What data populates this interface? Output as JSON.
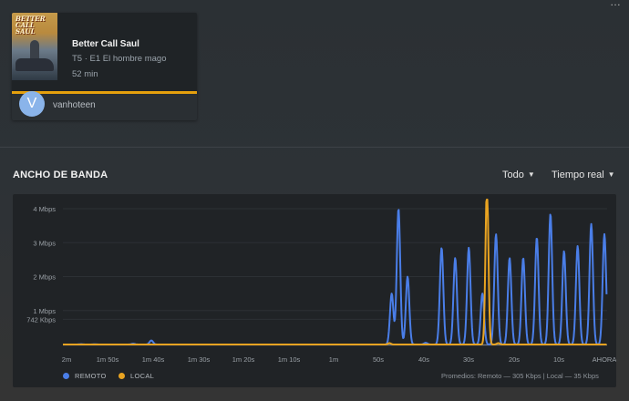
{
  "session": {
    "show_title": "Better Call Saul",
    "episode": "T5 · E1 El hombre mago",
    "duration": "52 min",
    "poster_text": "BETTER CALL SAUL",
    "progress": 1.0,
    "user": {
      "avatar_letter": "V",
      "name": "vanhoteen"
    }
  },
  "bandwidth": {
    "title": "ANCHO DE BANDA",
    "filter_label": "Todo",
    "range_label": "Tiempo real",
    "legend": {
      "remote": "REMOTO",
      "local": "LOCAL"
    },
    "averages": "Promedios: Remoto — 305 Kbps | Local — 35 Kbps"
  },
  "colors": {
    "remote": "#4a7ee8",
    "local": "#e8a321",
    "accent": "#e5a00d",
    "avatar": "#8ab4ea"
  },
  "chart_data": {
    "type": "line",
    "title": "ANCHO DE BANDA",
    "y_unit": "Kbps",
    "y_ticks": [
      {
        "label": "742 Kbps",
        "value": 742
      },
      {
        "label": "1 Mbps",
        "value": 1000
      },
      {
        "label": "2 Mbps",
        "value": 2000
      },
      {
        "label": "3 Mbps",
        "value": 3000
      },
      {
        "label": "4 Mbps",
        "value": 4000
      }
    ],
    "ylim": [
      0,
      4000
    ],
    "x_ticks": [
      "2m",
      "1m 50s",
      "1m 40s",
      "1m 30s",
      "1m 20s",
      "1m 10s",
      "1m",
      "50s",
      "40s",
      "30s",
      "20s",
      "10s",
      "AHORA"
    ],
    "x_unit": "seconds ago",
    "xlim": [
      120,
      0
    ],
    "series": [
      {
        "name": "REMOTO",
        "color": "#4a7ee8",
        "peaks": [
          {
            "x": 116,
            "y": 10
          },
          {
            "x": 113,
            "y": 8
          },
          {
            "x": 104.5,
            "y": 25
          },
          {
            "x": 100.5,
            "y": 120
          },
          {
            "x": 47.5,
            "y": 1500
          },
          {
            "x": 46,
            "y": 4000
          },
          {
            "x": 44,
            "y": 2000
          },
          {
            "x": 40,
            "y": 50
          },
          {
            "x": 36.5,
            "y": 2850
          },
          {
            "x": 33.5,
            "y": 2550
          },
          {
            "x": 30.5,
            "y": 2850
          },
          {
            "x": 27.5,
            "y": 1500
          },
          {
            "x": 24.5,
            "y": 3250
          },
          {
            "x": 21.5,
            "y": 2550
          },
          {
            "x": 18.5,
            "y": 2550
          },
          {
            "x": 15.5,
            "y": 3150
          },
          {
            "x": 12.5,
            "y": 3850
          },
          {
            "x": 9.5,
            "y": 2750
          },
          {
            "x": 6.5,
            "y": 2900
          },
          {
            "x": 3.5,
            "y": 3550
          },
          {
            "x": 0.6,
            "y": 3250
          }
        ]
      },
      {
        "name": "LOCAL",
        "color": "#e8a321",
        "peaks": [
          {
            "x": 48,
            "y": 40
          },
          {
            "x": 26.5,
            "y": 4700
          },
          {
            "x": 24,
            "y": 40
          }
        ]
      }
    ]
  }
}
